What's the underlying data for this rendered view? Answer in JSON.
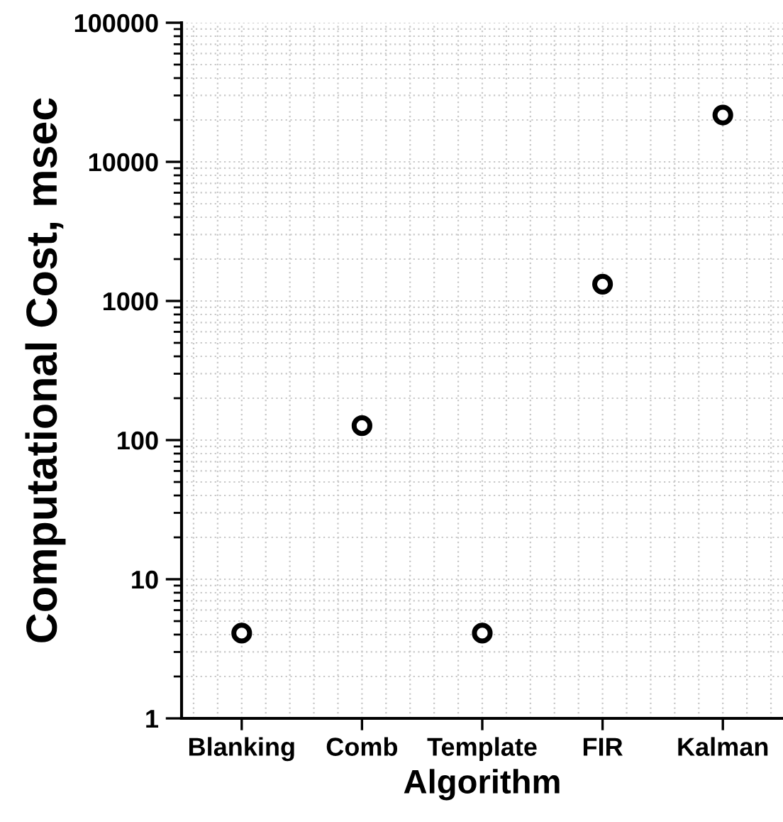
{
  "chart_data": {
    "type": "scatter",
    "xlabel": "Algorithm",
    "ylabel": "Computational Cost, msec",
    "categories": [
      "Blanking",
      "Comb",
      "Template",
      "FIR",
      "Kalman"
    ],
    "series": [
      {
        "color": "#000000",
        "values": [
          4.1,
          127,
          4.1,
          1320,
          21700
        ]
      }
    ],
    "ylim": [
      1,
      100000
    ],
    "yticks": [
      1,
      10,
      100,
      1000,
      10000,
      100000
    ],
    "log": "y",
    "grid": true,
    "marker": "circle"
  }
}
